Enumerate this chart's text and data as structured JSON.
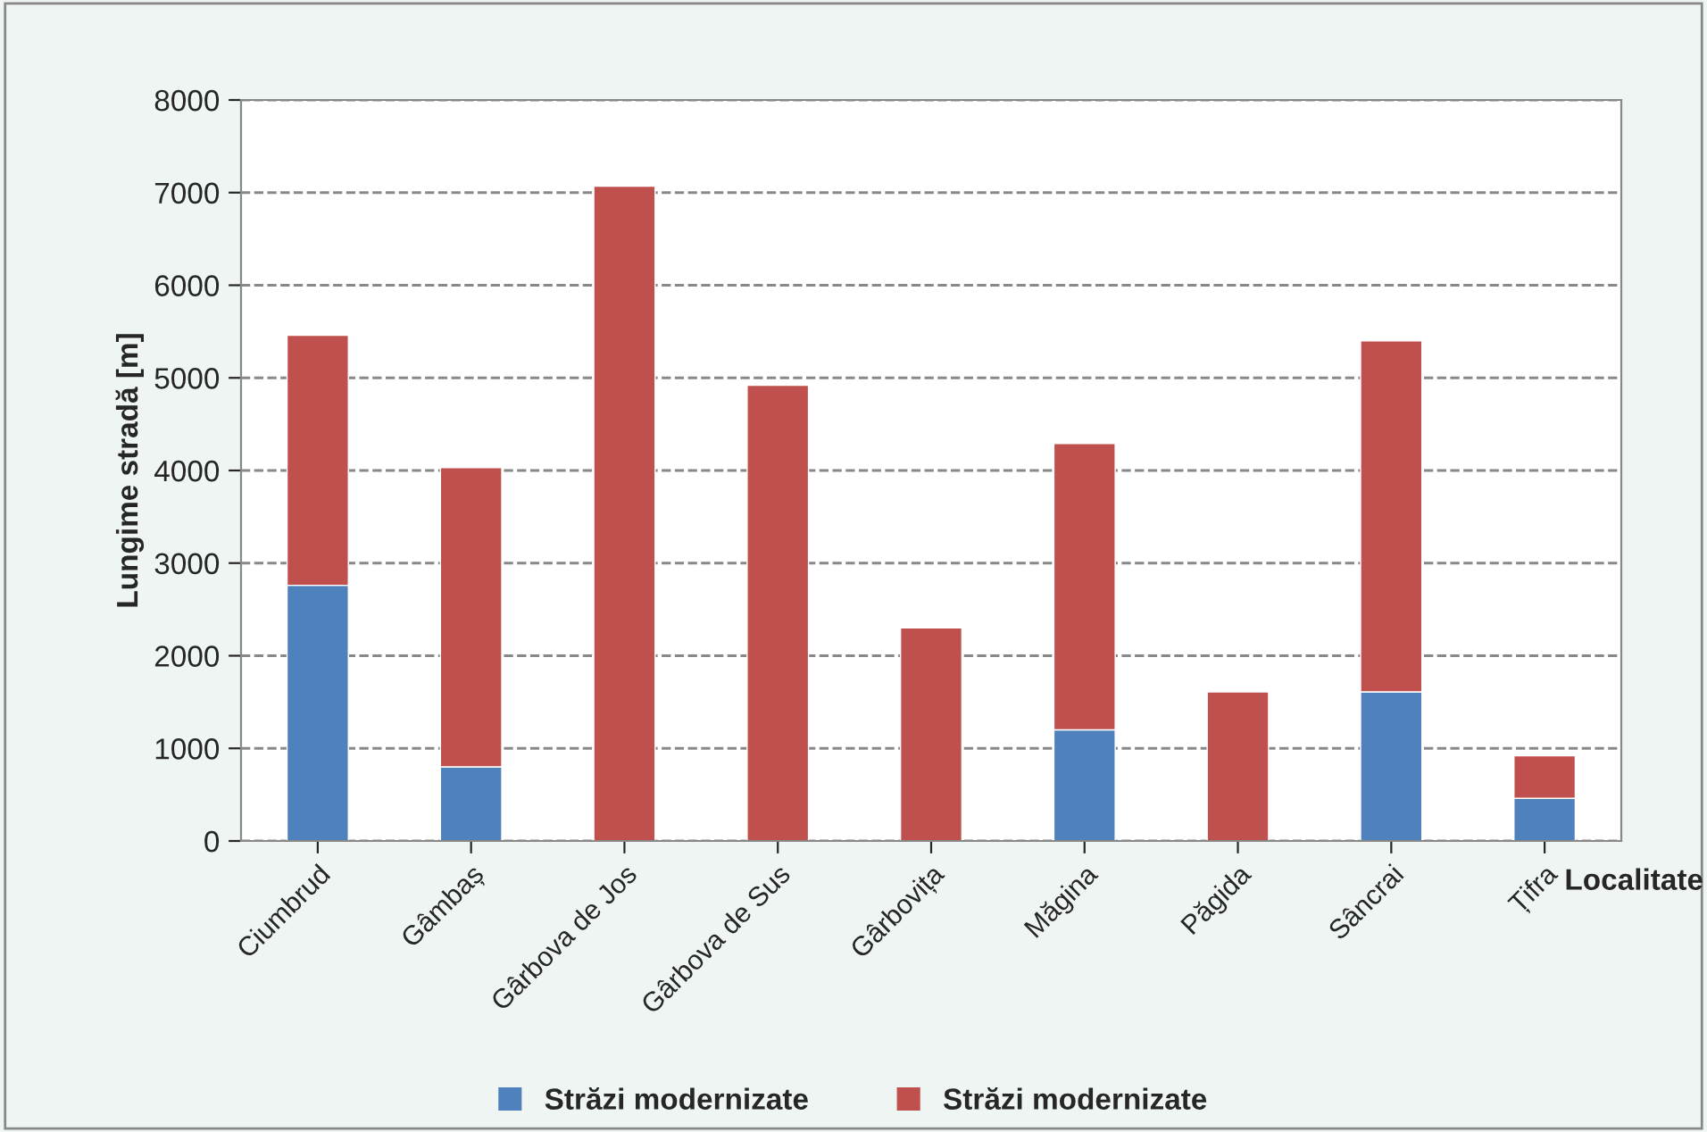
{
  "chart_data": {
    "type": "bar",
    "stacked": true,
    "xlabel": "Localitate",
    "ylabel": "Lungime stradă [m]",
    "categories": [
      "Ciumbrud",
      "Gâmbaș",
      "Gârbova de Jos",
      "Gârbova de Sus",
      "Gârbovița",
      "Măgina",
      "Păgida",
      "Sâncrai",
      "Țifra"
    ],
    "series": [
      {
        "name": "Străzi modernizate",
        "color": "#4f81bd",
        "values": [
          2760,
          800,
          0,
          0,
          0,
          1200,
          0,
          1610,
          460
        ]
      },
      {
        "name": "Străzi modernizate",
        "color": "#c0504d",
        "values": [
          2700,
          3230,
          7070,
          4920,
          2300,
          3090,
          1610,
          3790,
          460
        ]
      }
    ],
    "ylim": [
      0,
      8000
    ],
    "yticks": [
      0,
      1000,
      2000,
      3000,
      4000,
      5000,
      6000,
      7000,
      8000
    ],
    "grid": "y",
    "legend": "bottom"
  }
}
